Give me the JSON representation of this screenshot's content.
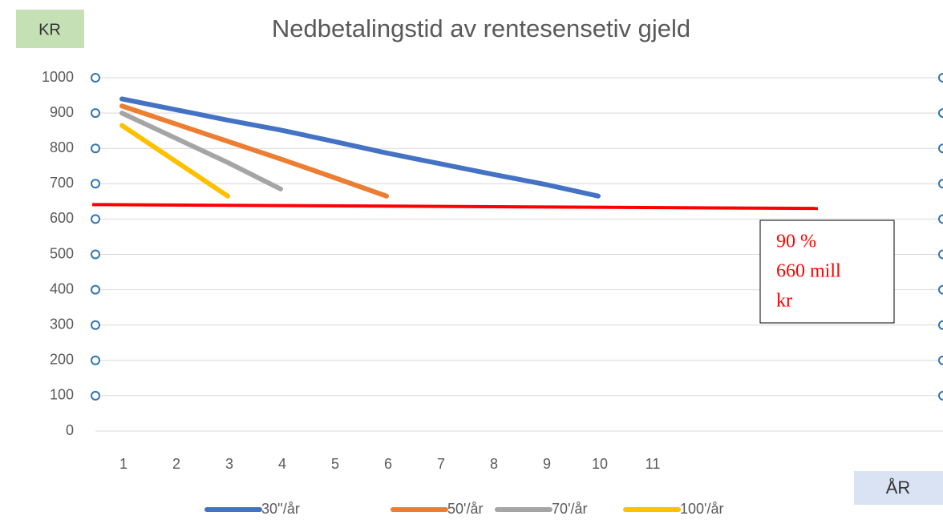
{
  "chart_data": {
    "type": "line",
    "title": "Nedbetalingstid av rentesensetiv gjeld",
    "y_label": "KR",
    "x_label": "ÅR",
    "categories": [
      1,
      2,
      3,
      4,
      5,
      6,
      7,
      8,
      9,
      10,
      11,
      null,
      null,
      null,
      null,
      null
    ],
    "series": [
      {
        "name": "30''/år",
        "color": "#4472c4",
        "values": [
          940,
          910,
          880,
          852,
          820,
          787,
          757,
          727,
          698,
          665,
          null,
          null,
          null,
          null,
          null,
          null
        ]
      },
      {
        "name": "50'/år",
        "color": "#ed7d31",
        "values": [
          920,
          870,
          820,
          770,
          718,
          665,
          null,
          null,
          null,
          null,
          null,
          null,
          null,
          null,
          null,
          null
        ]
      },
      {
        "name": "70'/år",
        "color": "#a5a5a5",
        "values": [
          900,
          830,
          760,
          685,
          null,
          null,
          null,
          null,
          null,
          null,
          null,
          null,
          null,
          null,
          null,
          null
        ]
      },
      {
        "name": "100'/år",
        "color": "#ffc000",
        "values": [
          865,
          765,
          665,
          null,
          null,
          null,
          null,
          null,
          null,
          null,
          null,
          null,
          null,
          null,
          null,
          null
        ]
      }
    ],
    "reference_line": {
      "values": [
        641,
        630
      ],
      "color": "#ff0000"
    },
    "annotation": {
      "lines": [
        "90 %",
        "660 mill",
        "kr"
      ],
      "color": "#ff0000"
    },
    "ylim": [
      0,
      1000
    ],
    "yticks": [
      0,
      100,
      200,
      300,
      400,
      500,
      600,
      700,
      800,
      900,
      1000
    ],
    "grid": true,
    "legend": "bottom"
  }
}
